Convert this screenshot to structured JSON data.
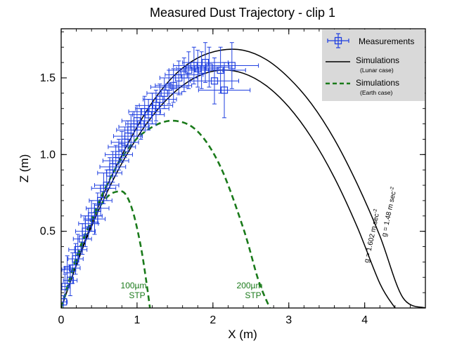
{
  "chart_data": {
    "type": "scatter",
    "title": "Measured Dust Trajectory - clip 1",
    "xlabel": "X (m)",
    "ylabel": "Z (m)",
    "xlim": [
      0,
      4.8
    ],
    "ylim": [
      0,
      1.82
    ],
    "x_ticks": [
      0,
      1,
      2,
      3,
      4
    ],
    "y_ticks": [
      0.5,
      1.0,
      1.5
    ],
    "x_tick_labels": [
      "0",
      "1",
      "2",
      "3",
      "4"
    ],
    "y_tick_labels": [
      "0.5",
      "1.0",
      "1.5"
    ],
    "grid": false,
    "legend_position": "top-right",
    "colors": {
      "measurements": "#1f3fe0",
      "lunar": "#000000",
      "earth": "#1a7a1a",
      "legend_bg": "#d9d9d9"
    },
    "legend": [
      {
        "label": "Measurements",
        "style": "blue open squares with error bars"
      },
      {
        "label": "Simulations",
        "sub": "(Lunar case)",
        "style": "solid black"
      },
      {
        "label": "Simulations",
        "sub": "(Earth case)",
        "style": "dashed green"
      }
    ],
    "series": [
      {
        "name": "Measurements",
        "kind": "points",
        "x": [
          0.03,
          0.05,
          0.08,
          0.12,
          0.15,
          0.19,
          0.22,
          0.28,
          0.32,
          0.36,
          0.4,
          0.44,
          0.48,
          0.52,
          0.56,
          0.6,
          0.64,
          0.68,
          0.72,
          0.76,
          0.8,
          0.84,
          0.88,
          0.92,
          0.96,
          1.0,
          1.05,
          1.1,
          1.15,
          1.2,
          1.25,
          1.3,
          1.36,
          1.42,
          1.48,
          1.55,
          1.62,
          1.68,
          1.75,
          1.8,
          1.85,
          1.9,
          1.95,
          2.02,
          2.1,
          2.15,
          2.25
        ],
        "y": [
          0.04,
          0.14,
          0.25,
          0.18,
          0.26,
          0.32,
          0.38,
          0.45,
          0.5,
          0.55,
          0.6,
          0.58,
          0.65,
          0.7,
          0.78,
          0.8,
          0.88,
          0.92,
          0.96,
          1.0,
          1.05,
          1.08,
          1.12,
          1.16,
          1.18,
          1.22,
          1.2,
          1.28,
          1.26,
          1.3,
          1.32,
          1.36,
          1.4,
          1.44,
          1.45,
          1.5,
          1.52,
          1.55,
          1.58,
          1.56,
          1.55,
          1.6,
          1.57,
          1.48,
          1.55,
          1.42,
          1.58
        ],
        "xerr": [
          0.05,
          0.06,
          0.07,
          0.09,
          0.1,
          0.1,
          0.12,
          0.12,
          0.13,
          0.13,
          0.14,
          0.14,
          0.15,
          0.15,
          0.16,
          0.16,
          0.16,
          0.17,
          0.17,
          0.18,
          0.18,
          0.18,
          0.19,
          0.19,
          0.2,
          0.2,
          0.2,
          0.21,
          0.21,
          0.22,
          0.22,
          0.22,
          0.23,
          0.24,
          0.24,
          0.25,
          0.25,
          0.26,
          0.27,
          0.28,
          0.28,
          0.3,
          0.3,
          0.32,
          0.33,
          0.34,
          0.35
        ],
        "yerr": [
          0.04,
          0.08,
          0.09,
          0.1,
          0.1,
          0.1,
          0.1,
          0.1,
          0.1,
          0.1,
          0.1,
          0.1,
          0.1,
          0.1,
          0.1,
          0.1,
          0.1,
          0.1,
          0.1,
          0.1,
          0.1,
          0.1,
          0.1,
          0.1,
          0.1,
          0.1,
          0.1,
          0.1,
          0.1,
          0.1,
          0.1,
          0.1,
          0.1,
          0.11,
          0.11,
          0.11,
          0.11,
          0.12,
          0.12,
          0.12,
          0.12,
          0.13,
          0.13,
          0.15,
          0.15,
          0.18,
          0.15
        ]
      },
      {
        "name": "g = 1.48 m sec⁻²",
        "kind": "line",
        "style": "solid",
        "x": [
          0.0,
          0.3,
          0.6,
          0.9,
          1.2,
          1.5,
          1.8,
          2.1,
          2.4,
          2.7,
          3.0,
          3.3,
          3.6,
          3.9,
          4.2,
          4.5,
          4.8
        ],
        "y": [
          0.0,
          0.42,
          0.79,
          1.09,
          1.34,
          1.52,
          1.63,
          1.68,
          1.68,
          1.62,
          1.5,
          1.33,
          1.1,
          0.81,
          0.47,
          0.07,
          0.0
        ]
      },
      {
        "name": "g = 1.602 m sec⁻²",
        "kind": "line",
        "style": "solid",
        "x": [
          0.0,
          0.3,
          0.6,
          0.9,
          1.2,
          1.5,
          1.8,
          2.1,
          2.4,
          2.7,
          3.0,
          3.3,
          3.6,
          3.9,
          4.2,
          4.4
        ],
        "y": [
          0.0,
          0.41,
          0.75,
          1.03,
          1.25,
          1.41,
          1.51,
          1.55,
          1.53,
          1.45,
          1.31,
          1.11,
          0.85,
          0.53,
          0.16,
          0.0
        ]
      },
      {
        "name": "100µm STP",
        "kind": "line",
        "style": "dashed",
        "x": [
          0.0,
          0.2,
          0.4,
          0.6,
          0.75,
          0.85,
          0.95,
          1.05,
          1.12,
          1.17
        ],
        "y": [
          0.0,
          0.33,
          0.57,
          0.72,
          0.76,
          0.74,
          0.62,
          0.4,
          0.18,
          0.0
        ]
      },
      {
        "name": "200µm STP",
        "kind": "line",
        "style": "dashed",
        "x": [
          0.0,
          0.3,
          0.6,
          0.9,
          1.2,
          1.5,
          1.8,
          2.1,
          2.4,
          2.6,
          2.75
        ],
        "y": [
          0.0,
          0.45,
          0.8,
          1.05,
          1.18,
          1.22,
          1.15,
          0.92,
          0.52,
          0.18,
          0.0
        ]
      }
    ],
    "annotations": {
      "lunar_1": "g = 1.48 m sec",
      "lunar_2": "g = 1.602 m sec",
      "lunar_exp": "-2",
      "earth_1a": "100µm",
      "earth_1b": "STP",
      "earth_2a": "200µm",
      "earth_2b": "STP"
    }
  }
}
